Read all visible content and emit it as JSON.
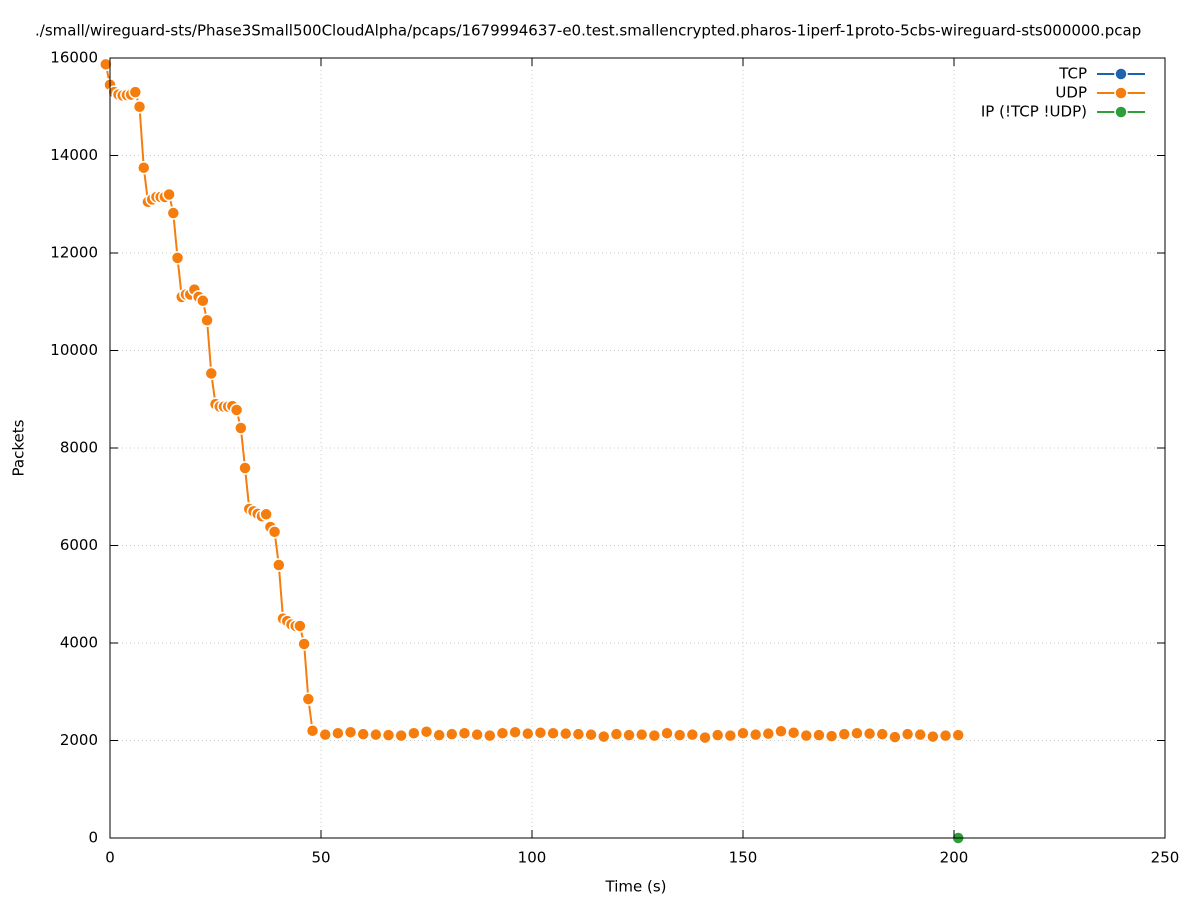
{
  "chart_data": {
    "type": "line",
    "title": "./small/wireguard-sts/Phase3Small500CloudAlpha/pcaps/1679994637-e0.test.smallencrypted.pharos-1iperf-1proto-5cbs-wireguard-sts000000.pcap",
    "xlabel": "Time (s)",
    "ylabel": "Packets",
    "xlim": [
      0,
      250
    ],
    "xticks": [
      0,
      50,
      100,
      150,
      200,
      250
    ],
    "ylim": [
      0,
      16000
    ],
    "yticks": [
      0,
      2000,
      4000,
      6000,
      8000,
      10000,
      12000,
      14000,
      16000
    ],
    "grid": true,
    "legend": "upper right",
    "series": [
      {
        "name": "TCP",
        "color": "#1f63ad",
        "x": [],
        "values": []
      },
      {
        "name": "UDP",
        "color": "#f57d0d",
        "x": [
          -1,
          0,
          1,
          2,
          3,
          4,
          5,
          6,
          7,
          8,
          9,
          10,
          11,
          12,
          13,
          14,
          15,
          16,
          17,
          18,
          19,
          20,
          21,
          22,
          23,
          24,
          25,
          26,
          27,
          28,
          29,
          30,
          31,
          32,
          33,
          34,
          35,
          36,
          37,
          38,
          39,
          40,
          41,
          42,
          43,
          44,
          45,
          46,
          47,
          48,
          51,
          54,
          57,
          60,
          63,
          66,
          69,
          72,
          75,
          78,
          81,
          84,
          87,
          90,
          93,
          96,
          99,
          102,
          105,
          108,
          111,
          114,
          117,
          120,
          123,
          126,
          129,
          132,
          135,
          138,
          141,
          144,
          147,
          150,
          153,
          156,
          159,
          162,
          165,
          168,
          171,
          174,
          177,
          180,
          183,
          186,
          189,
          192,
          195,
          198,
          201
        ],
        "values": [
          15870,
          15450,
          15300,
          15250,
          15230,
          15240,
          15250,
          15300,
          15000,
          13750,
          13050,
          13100,
          13150,
          13150,
          13150,
          13200,
          12820,
          11900,
          11100,
          11150,
          11150,
          11250,
          11100,
          11020,
          10620,
          9530,
          8900,
          8850,
          8850,
          8850,
          8860,
          8780,
          8410,
          7590,
          6750,
          6700,
          6650,
          6600,
          6640,
          6380,
          6280,
          5600,
          4500,
          4450,
          4380,
          4350,
          4350,
          3980,
          2850,
          2200,
          2120,
          2150,
          2170,
          2130,
          2120,
          2110,
          2100,
          2150,
          2180,
          2110,
          2130,
          2150,
          2120,
          2100,
          2150,
          2170,
          2140,
          2160,
          2150,
          2140,
          2130,
          2120,
          2080,
          2130,
          2110,
          2120,
          2100,
          2150,
          2110,
          2120,
          2060,
          2110,
          2100,
          2150,
          2120,
          2140,
          2190,
          2160,
          2100,
          2110,
          2090,
          2130,
          2150,
          2140,
          2130,
          2070,
          2130,
          2120,
          2080,
          2100,
          2110
        ]
      },
      {
        "name": "IP (!TCP  !UDP)",
        "color": "#2e9e3a",
        "x": [
          201
        ],
        "values": [
          0
        ]
      }
    ]
  }
}
